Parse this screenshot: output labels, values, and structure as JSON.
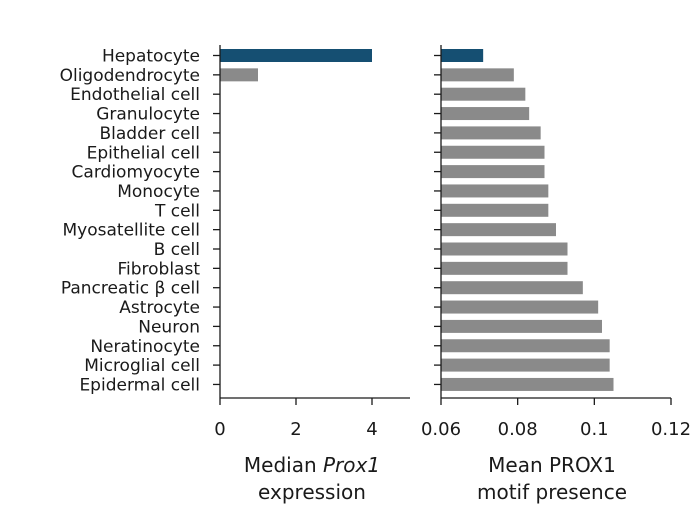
{
  "chart_data": [
    {
      "type": "bar",
      "orientation": "horizontal",
      "categories": [
        "Hepatocyte",
        "Oligodendrocyte",
        "Endothelial cell",
        "Granulocyte",
        "Bladder cell",
        "Epithelial cell",
        "Cardiomyocyte",
        "Monocyte",
        "T cell",
        "Myosatellite cell",
        "B cell",
        "Fibroblast",
        "Pancreatic β cell",
        "Astrocyte",
        "Neuron",
        "Neratinocyte",
        "Microglial cell",
        "Epidermal cell"
      ],
      "values": [
        4,
        1,
        0,
        0,
        0,
        0,
        0,
        0,
        0,
        0,
        0,
        0,
        0,
        0,
        0,
        0,
        0,
        0
      ],
      "xlabel_line1_prefix": "Median ",
      "xlabel_line1_italic": "Prox1",
      "xlabel_line2": "expression",
      "xlim": [
        0,
        5
      ],
      "xticks": [
        0,
        2,
        4
      ],
      "colors": {
        "highlight": "#154f72",
        "default": "#8a8a8a"
      }
    },
    {
      "type": "bar",
      "orientation": "horizontal",
      "categories": [
        "Hepatocyte",
        "Oligodendrocyte",
        "Endothelial cell",
        "Granulocyte",
        "Bladder cell",
        "Epithelial cell",
        "Cardiomyocyte",
        "Monocyte",
        "T cell",
        "Myosatellite cell",
        "B cell",
        "Fibroblast",
        "Pancreatic β cell",
        "Astrocyte",
        "Neuron",
        "Neratinocyte",
        "Microglial cell",
        "Epidermal cell"
      ],
      "values": [
        0.071,
        0.079,
        0.082,
        0.083,
        0.086,
        0.087,
        0.087,
        0.088,
        0.088,
        0.09,
        0.093,
        0.093,
        0.097,
        0.101,
        0.102,
        0.104,
        0.104,
        0.105
      ],
      "xlabel_line1": "Mean PROX1",
      "xlabel_line2": "motif presence",
      "xlim": [
        0.06,
        0.12
      ],
      "xticks": [
        0.06,
        0.08,
        0.1,
        0.12
      ],
      "tick_labels": [
        "0.06",
        "0.08",
        "0.1",
        "0.12"
      ],
      "colors": {
        "highlight": "#154f72",
        "default": "#8a8a8a"
      }
    }
  ]
}
